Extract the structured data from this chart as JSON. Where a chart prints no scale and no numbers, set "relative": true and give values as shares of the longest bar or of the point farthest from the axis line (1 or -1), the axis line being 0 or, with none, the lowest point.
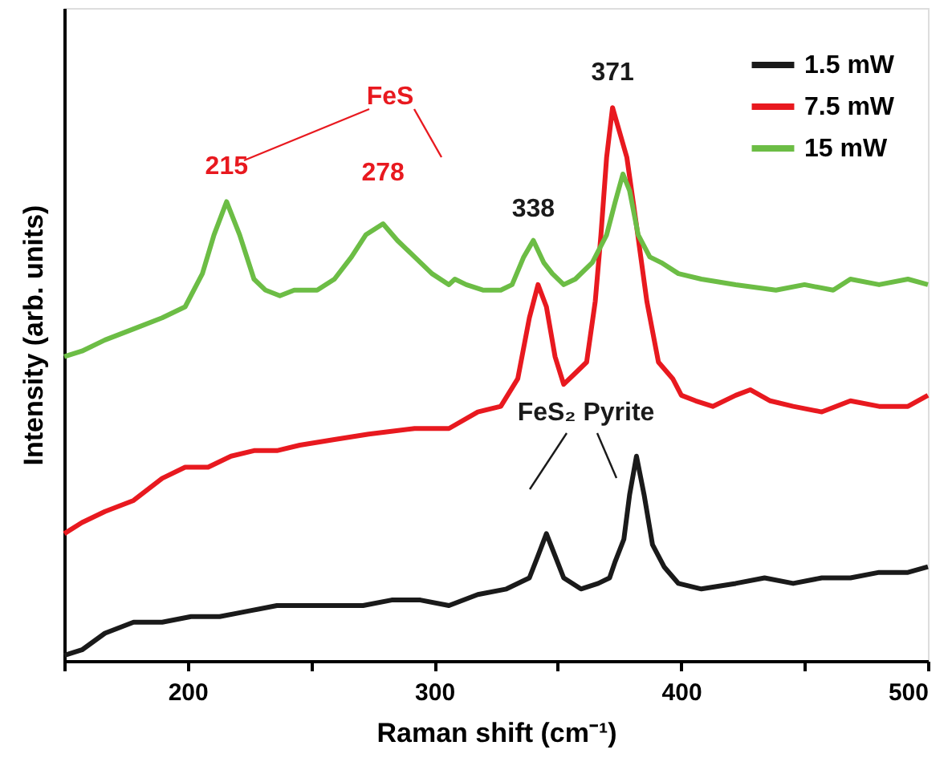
{
  "chart_data": {
    "type": "line",
    "relative": true,
    "xlabel": "Raman shift (cm⁻¹)",
    "ylabel": "Intensity (arb. units)",
    "xlim": [
      150,
      500
    ],
    "xticks": [
      {
        "value": 150,
        "label": null
      },
      200,
      {
        "value": 250,
        "label": null
      },
      300,
      {
        "value": 350,
        "label": null
      },
      400,
      {
        "value": 450,
        "label": null
      },
      500
    ],
    "legend": "top right",
    "grid": false,
    "marker": "none",
    "line_style": "solid",
    "series": [
      {
        "name": "1.5 mW",
        "color": "#1a1a1a",
        "x": [
          150,
          157.2,
          166.5,
          178.1,
          189.7,
          201.4,
          213.0,
          224.6,
          236.2,
          247.8,
          259.5,
          271.1,
          282.7,
          294.3,
          305.9,
          317.6,
          329.2,
          338.5,
          342.0,
          345.4,
          348.9,
          352.4,
          359.4,
          366.4,
          371.0,
          373.3,
          376.8,
          379.1,
          381.9,
          385.0,
          388.4,
          393.1,
          398.9,
          408.2,
          422.1,
          433.8,
          445.4,
          457.0,
          468.6,
          480.2,
          491.9,
          500
        ],
        "values": [
          0.01,
          0.02,
          0.05,
          0.07,
          0.07,
          0.08,
          0.08,
          0.09,
          0.1,
          0.1,
          0.1,
          0.1,
          0.11,
          0.11,
          0.1,
          0.12,
          0.13,
          0.15,
          0.19,
          0.23,
          0.19,
          0.15,
          0.13,
          0.14,
          0.15,
          0.18,
          0.22,
          0.3,
          0.37,
          0.3,
          0.21,
          0.17,
          0.14,
          0.13,
          0.14,
          0.15,
          0.14,
          0.15,
          0.15,
          0.16,
          0.16,
          0.17
        ]
      },
      {
        "name": "7.5 mW",
        "color": "#e8191f",
        "x": [
          150,
          157.2,
          166.5,
          178.1,
          189.7,
          199.0,
          208.3,
          217.6,
          226.9,
          236.2,
          245.5,
          259.5,
          273.4,
          292.0,
          305.9,
          317.6,
          326.9,
          333.8,
          338.5,
          342.0,
          345.4,
          348.9,
          352.4,
          357.1,
          361.7,
          365.2,
          367.5,
          369.8,
          372.2,
          378.0,
          381.5,
          386.1,
          390.8,
          396.6,
          400.1,
          405.9,
          412.8,
          422.1,
          428.0,
          436.1,
          445.4,
          457.0,
          468.6,
          480.2,
          491.9,
          500
        ],
        "values": [
          0.23,
          0.25,
          0.27,
          0.29,
          0.33,
          0.35,
          0.35,
          0.37,
          0.38,
          0.38,
          0.39,
          0.4,
          0.41,
          0.42,
          0.42,
          0.45,
          0.46,
          0.51,
          0.62,
          0.68,
          0.64,
          0.55,
          0.5,
          0.52,
          0.54,
          0.65,
          0.77,
          0.91,
          1.0,
          0.91,
          0.8,
          0.65,
          0.54,
          0.51,
          0.48,
          0.47,
          0.46,
          0.48,
          0.49,
          0.47,
          0.46,
          0.45,
          0.47,
          0.46,
          0.46,
          0.48
        ]
      },
      {
        "name": "15 mW",
        "color": "#6cbd45",
        "x": [
          150,
          157.2,
          166.5,
          178.1,
          189.7,
          199.0,
          206.0,
          210.7,
          215.8,
          221.1,
          226.9,
          231.6,
          237.4,
          243.2,
          252.5,
          259.5,
          266.4,
          272.2,
          279.2,
          285.0,
          292.0,
          299.0,
          305.9,
          308.3,
          312.9,
          319.9,
          326.9,
          331.5,
          336.2,
          340.1,
          344.3,
          347.8,
          352.4,
          357.1,
          364.0,
          369.8,
          373.3,
          376.4,
          379.1,
          382.6,
          387.3,
          391.9,
          398.9,
          408.2,
          422.1,
          438.4,
          450.0,
          461.6,
          468.6,
          480.2,
          491.9,
          500
        ],
        "values": [
          0.55,
          0.56,
          0.58,
          0.6,
          0.62,
          0.64,
          0.7,
          0.77,
          0.83,
          0.77,
          0.69,
          0.67,
          0.66,
          0.67,
          0.67,
          0.69,
          0.73,
          0.77,
          0.79,
          0.76,
          0.73,
          0.7,
          0.68,
          0.69,
          0.68,
          0.67,
          0.67,
          0.68,
          0.73,
          0.76,
          0.72,
          0.7,
          0.68,
          0.69,
          0.72,
          0.77,
          0.83,
          0.88,
          0.85,
          0.77,
          0.73,
          0.72,
          0.7,
          0.69,
          0.68,
          0.67,
          0.68,
          0.67,
          0.69,
          0.68,
          0.69,
          0.68
        ]
      }
    ],
    "annotations": [
      "FeS",
      {
        "text": "215",
        "x": 215.8,
        "y": 0.83
      },
      {
        "text": "278",
        "x": 279.2,
        "y": 0.79
      },
      {
        "text": "338",
        "x": 340.1,
        "y": 0.76
      },
      {
        "text": "371",
        "x": 372.2,
        "y": 1.0
      },
      "FeS₂ Pyrite"
    ]
  }
}
